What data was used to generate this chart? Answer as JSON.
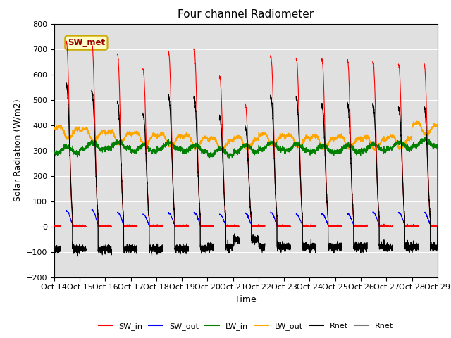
{
  "title": "Four channel Radiometer",
  "xlabel": "Time",
  "ylabel": "Solar Radiation (W/m2)",
  "ylim": [
    -200,
    800
  ],
  "xlim": [
    0,
    15
  ],
  "bg_color": "#e0e0e0",
  "annotation_text": "SW_met",
  "annotation_bg": "#ffffcc",
  "annotation_border": "#ccaa00",
  "legend_entries": [
    "SW_in",
    "SW_out",
    "LW_in",
    "LW_out",
    "Rnet",
    "Rnet"
  ],
  "legend_colors": [
    "red",
    "blue",
    "green",
    "orange",
    "black",
    "#777777"
  ],
  "xtick_labels": [
    "Oct 14",
    "Oct 15",
    "Oct 16",
    "Oct 17",
    "Oct 18",
    "Oct 19",
    "Oct 20",
    "Oct 21",
    "Oct 22",
    "Oct 23",
    "Oct 24",
    "Oct 25",
    "Oct 26",
    "Oct 27",
    "Oct 28",
    "Oct 29"
  ],
  "ytick_values": [
    -200,
    -100,
    0,
    100,
    200,
    300,
    400,
    500,
    600,
    700,
    800
  ],
  "num_days": 15,
  "sw_in_peak": [
    730,
    720,
    680,
    620,
    685,
    700,
    590,
    480,
    670,
    660,
    660,
    655,
    645,
    640,
    640
  ],
  "sw_out_peak": [
    62,
    65,
    55,
    47,
    52,
    55,
    47,
    52,
    55,
    47,
    50,
    50,
    55,
    55,
    55
  ],
  "lw_in_base": [
    290,
    305,
    308,
    295,
    305,
    295,
    282,
    295,
    305,
    300,
    295,
    295,
    300,
    308,
    318
  ],
  "lw_out_base": [
    385,
    375,
    365,
    360,
    355,
    350,
    340,
    345,
    358,
    352,
    348,
    347,
    343,
    348,
    400
  ],
  "rnet_peak": [
    560,
    530,
    490,
    440,
    510,
    510,
    430,
    390,
    510,
    505,
    480,
    480,
    475,
    470,
    470
  ],
  "rnet_night": [
    -90,
    -90,
    -90,
    -90,
    -90,
    -90,
    -80,
    -50,
    -80,
    -80,
    -80,
    -80,
    -80,
    -80,
    -80
  ]
}
